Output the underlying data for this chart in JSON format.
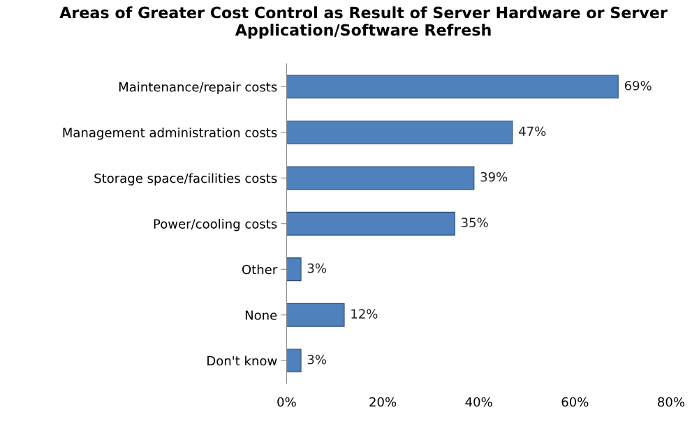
{
  "chart_data": {
    "type": "bar",
    "orientation": "horizontal",
    "title": "Areas of Greater Cost Control as Result of Server Hardware or Server Application/Software Refresh",
    "categories": [
      "Maintenance/repair costs",
      "Management administration costs",
      "Storage space/facilities costs",
      "Power/cooling costs",
      "Other",
      "None",
      "Don't know"
    ],
    "values": [
      69,
      47,
      39,
      35,
      3,
      12,
      3
    ],
    "value_labels": [
      "69%",
      "47%",
      "39%",
      "35%",
      "3%",
      "12%",
      "3%"
    ],
    "color": "#4f81bd",
    "xlim": [
      0,
      80
    ],
    "xticks": [
      {
        "value": 0,
        "label": "0%"
      },
      {
        "value": 20,
        "label": "20%"
      },
      {
        "value": 40,
        "label": "40%"
      },
      {
        "value": 60,
        "label": "60%"
      },
      {
        "value": 80,
        "label": "80%"
      }
    ],
    "grid": false,
    "legend": false
  }
}
